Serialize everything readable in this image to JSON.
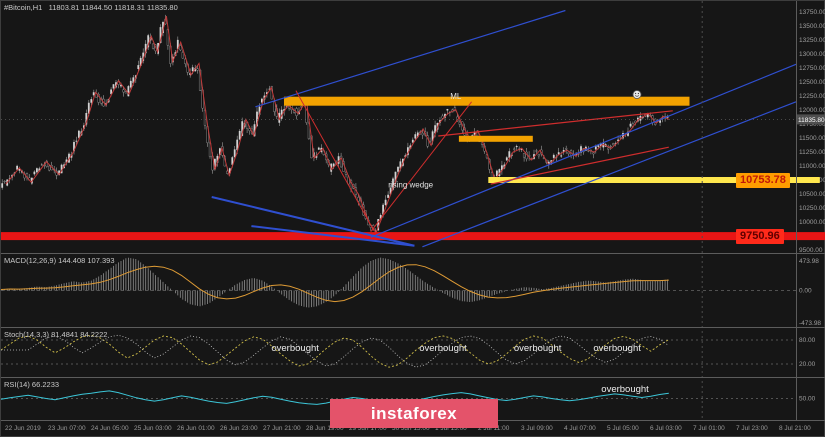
{
  "window": {
    "symbol_info": "#Bitcoin,H1   11803.81 11844.50 11818.31 11835.80"
  },
  "watermark": {
    "label": "instaforex"
  },
  "panel_labels": {
    "macd": "MACD(12,26,9) 144.408 107.393",
    "stoch": "Stoch(14,3,3) 81.4841 84.2222",
    "rsi": "RSI(14) 66.2233"
  },
  "chart_data": {
    "type": "candlestick",
    "symbol": "#Bitcoin",
    "timeframe": "H1",
    "ylim": [
      9450,
      13950
    ],
    "current_price": 11835.8,
    "candles_count": 270,
    "candles_end_fraction": 0.84,
    "separator_x": 0.882,
    "price_ticks": [
      13750,
      13500,
      13250,
      13000,
      12750,
      12500,
      12250,
      12000,
      11750,
      11500,
      11250,
      11000,
      10750,
      10500,
      10250,
      10000,
      9750,
      9500
    ],
    "price_path": [
      [
        0.006,
        10680
      ],
      [
        0.023,
        10970
      ],
      [
        0.038,
        10715
      ],
      [
        0.057,
        11080
      ],
      [
        0.073,
        10850
      ],
      [
        0.091,
        11250
      ],
      [
        0.107,
        11770
      ],
      [
        0.119,
        12320
      ],
      [
        0.132,
        12090
      ],
      [
        0.148,
        12525
      ],
      [
        0.161,
        12285
      ],
      [
        0.176,
        12800
      ],
      [
        0.189,
        13320
      ],
      [
        0.197,
        13040
      ],
      [
        0.208,
        13680
      ],
      [
        0.216,
        12870
      ],
      [
        0.226,
        13215
      ],
      [
        0.239,
        12630
      ],
      [
        0.249,
        12835
      ],
      [
        0.26,
        11715
      ],
      [
        0.269,
        10940
      ],
      [
        0.278,
        11320
      ],
      [
        0.287,
        10835
      ],
      [
        0.297,
        11250
      ],
      [
        0.308,
        11835
      ],
      [
        0.318,
        11545
      ],
      [
        0.33,
        12180
      ],
      [
        0.34,
        12405
      ],
      [
        0.35,
        11835
      ],
      [
        0.361,
        12095
      ],
      [
        0.374,
        11940
      ],
      [
        0.384,
        12180
      ],
      [
        0.394,
        11145
      ],
      [
        0.405,
        11320
      ],
      [
        0.416,
        10940
      ],
      [
        0.428,
        11145
      ],
      [
        0.44,
        10715
      ],
      [
        0.45,
        10490
      ],
      [
        0.463,
        9990
      ],
      [
        0.472,
        9820
      ],
      [
        0.48,
        10110
      ],
      [
        0.488,
        10420
      ],
      [
        0.498,
        10800
      ],
      [
        0.508,
        11145
      ],
      [
        0.519,
        11420
      ],
      [
        0.531,
        11665
      ],
      [
        0.541,
        11370
      ],
      [
        0.551,
        11770
      ],
      [
        0.562,
        11940
      ],
      [
        0.572,
        12010
      ],
      [
        0.581,
        11715
      ],
      [
        0.591,
        11455
      ],
      [
        0.6,
        11630
      ],
      [
        0.611,
        11250
      ],
      [
        0.621,
        10765
      ],
      [
        0.633,
        10975
      ],
      [
        0.644,
        11250
      ],
      [
        0.655,
        11320
      ],
      [
        0.667,
        11110
      ],
      [
        0.678,
        11285
      ],
      [
        0.689,
        11025
      ],
      [
        0.701,
        11200
      ],
      [
        0.712,
        11285
      ],
      [
        0.723,
        11180
      ],
      [
        0.734,
        11320
      ],
      [
        0.746,
        11250
      ],
      [
        0.757,
        11390
      ],
      [
        0.768,
        11320
      ],
      [
        0.78,
        11490
      ],
      [
        0.791,
        11630
      ],
      [
        0.802,
        11835
      ],
      [
        0.814,
        11940
      ],
      [
        0.824,
        11770
      ],
      [
        0.833,
        11890
      ],
      [
        0.84,
        11836
      ]
    ],
    "levels": [
      {
        "name": "resistance-zone-band",
        "x1": 0.356,
        "x2": 0.866,
        "price": 12160,
        "h": 9,
        "color": "#f2a200"
      },
      {
        "name": "minor-resistance-band",
        "x1": 0.576,
        "x2": 0.669,
        "price": 11490,
        "h": 6,
        "color": "#f2a200"
      },
      {
        "name": "support-level-band",
        "x1": 0.613,
        "x2": 1.03,
        "price": 10753.78,
        "h": 6,
        "color": "#ffe74e",
        "label": "10753.78"
      },
      {
        "name": "major-support-band",
        "x1": 0,
        "x2": 1.038,
        "price": 9750.96,
        "h": 8,
        "color": "#e81515",
        "label": "9750.96"
      }
    ],
    "trendlines": {
      "blue": [
        [
          0.32,
          12060,
          0.71,
          13780,
          1.2
        ],
        [
          0.465,
          9730,
          1.0,
          12820,
          1.2
        ],
        [
          0.53,
          9560,
          1.0,
          12150,
          1.2
        ],
        [
          0.265,
          10450,
          0.52,
          9580,
          2
        ],
        [
          0.315,
          9930,
          0.52,
          9580,
          2
        ]
      ],
      "red": [
        [
          0.371,
          12350,
          0.469,
          9850,
          1
        ],
        [
          0.465,
          9830,
          0.592,
          12150,
          1
        ],
        [
          0.55,
          11540,
          0.845,
          11990,
          1.2
        ],
        [
          0.616,
          10680,
          0.84,
          11340,
          1.2
        ]
      ]
    },
    "annotations": [
      {
        "text": "ML",
        "x": 0.565,
        "price": 12200
      },
      {
        "text": "rising wedge",
        "x": 0.487,
        "price": 10620
      }
    ],
    "marker": {
      "x": 0.8,
      "price": 12280
    },
    "indicators": {
      "macd": {
        "values": [
          0.03,
          0.06,
          0.04,
          0.08,
          0.12,
          0.1,
          0.15,
          0.22,
          0.28,
          0.24,
          0.3,
          0.45,
          0.65,
          0.85,
          1.0,
          0.95,
          0.75,
          0.5,
          0.25,
          0.0,
          -0.25,
          -0.42,
          -0.48,
          -0.4,
          -0.22,
          -0.02,
          0.18,
          0.32,
          0.38,
          0.3,
          0.12,
          -0.1,
          -0.3,
          -0.45,
          -0.52,
          -0.48,
          -0.35,
          -0.15,
          0.12,
          0.42,
          0.7,
          0.9,
          1.0,
          0.95,
          0.82,
          0.65,
          0.45,
          0.25,
          0.08,
          -0.08,
          -0.22,
          -0.32,
          -0.35,
          -0.3,
          -0.2,
          -0.1,
          -0.02,
          0.05,
          0.1,
          0.08,
          0.04,
          0.08,
          0.14,
          0.2,
          0.26,
          0.3,
          0.28,
          0.24,
          0.28,
          0.33,
          0.36,
          0.32,
          0.28,
          0.3,
          0.34
        ],
        "axis": [
          "473.98",
          "0.00",
          "-473.98"
        ]
      },
      "stoch": {
        "values": [
          55,
          70,
          85,
          90,
          80,
          62,
          48,
          60,
          75,
          88,
          92,
          85,
          70,
          50,
          35,
          45,
          62,
          80,
          90,
          86,
          70,
          50,
          30,
          18,
          25,
          42,
          60,
          78,
          88,
          82,
          65,
          45,
          28,
          15,
          20,
          38,
          58,
          75,
          85,
          80,
          62,
          40,
          22,
          12,
          18,
          35,
          55,
          72,
          86,
          90,
          84,
          68,
          48,
          30,
          20,
          28,
          45,
          65,
          82,
          90,
          85,
          68,
          50,
          34,
          24,
          32,
          50,
          68,
          84,
          89,
          82,
          66,
          52,
          68,
          81
        ],
        "levels": [
          80,
          20
        ],
        "axis": [
          "80.00",
          "20.00"
        ],
        "overbought_labels": [
          {
            "text": "overbought",
            "x": 0.37
          },
          {
            "text": "overbought",
            "x": 0.556
          },
          {
            "text": "overbought",
            "x": 0.675
          },
          {
            "text": "overbought",
            "x": 0.775
          }
        ]
      },
      "rsi": {
        "values": [
          48,
          52,
          56,
          60,
          55,
          50,
          46,
          52,
          58,
          63,
          66,
          70,
          73,
          68,
          60,
          52,
          46,
          42,
          46,
          52,
          58,
          54,
          48,
          42,
          38,
          35,
          40,
          46,
          52,
          57,
          54,
          48,
          42,
          37,
          34,
          32,
          36,
          42,
          48,
          53,
          50,
          45,
          40,
          36,
          34,
          38,
          44,
          50,
          56,
          61,
          65,
          68,
          64,
          58,
          52,
          47,
          44,
          48,
          53,
          58,
          55,
          50,
          46,
          43,
          46,
          51,
          56,
          60,
          64,
          61,
          57,
          53,
          57,
          62,
          66
        ],
        "level": 50,
        "axis": [
          "50.00"
        ],
        "overbought_labels": [
          {
            "text": "overbought",
            "x": 0.785
          }
        ]
      }
    },
    "time_axis": [
      "22 Jun 2019",
      "23 Jun 07:00",
      "24 Jun 05:00",
      "25 Jun 03:00",
      "26 Jun 01:00",
      "26 Jun 23:00",
      "27 Jun 21:00",
      "28 Jun 19:00",
      "29 Jun 17:00",
      "30 Jun 15:00",
      "1 Jul 13:00",
      "2 Jul 11:00",
      "3 Jul 09:00",
      "4 Jul 07:00",
      "5 Jul 05:00",
      "6 Jul 03:00",
      "7 Jul 01:00",
      "7 Jul 23:00",
      "8 Jul 21:00"
    ]
  }
}
